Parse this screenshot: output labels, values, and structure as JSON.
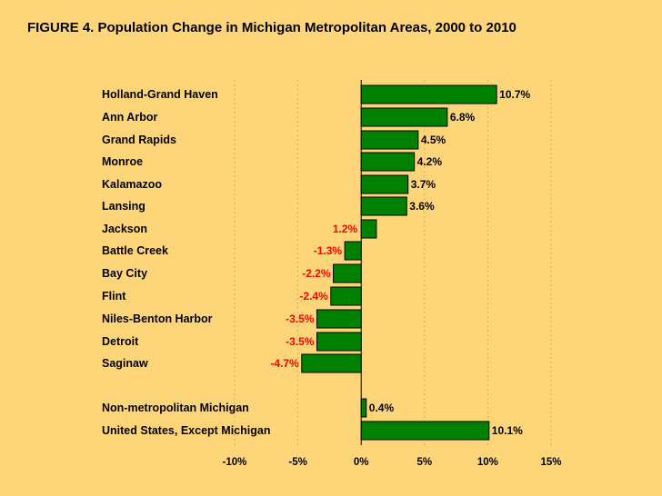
{
  "chart_data": {
    "type": "bar",
    "orientation": "horizontal",
    "title": "FIGURE 4.  Population Change in Michigan Metropolitan Areas, 2000 to 2010",
    "xlabel": "",
    "ylabel": "",
    "xlim": [
      -10,
      15
    ],
    "x_ticks": [
      -10,
      -5,
      0,
      5,
      10,
      15
    ],
    "x_tick_labels": [
      "-10%",
      "-5%",
      "0%",
      "5%",
      "10%",
      "15%"
    ],
    "grid": "vertical dashed",
    "categories": [
      "Holland-Grand Haven",
      "Ann Arbor",
      "Grand Rapids",
      "Monroe",
      "Kalamazoo",
      "Lansing",
      "Jackson",
      "Battle Creek",
      "Bay City",
      "Flint",
      "Niles-Benton Harbor",
      "Detroit",
      "Saginaw",
      "Non-metropolitan Michigan",
      "United States, Except Michigan"
    ],
    "values": [
      10.7,
      6.8,
      4.5,
      4.2,
      3.7,
      3.6,
      1.2,
      -1.3,
      -2.2,
      -2.4,
      -3.5,
      -3.5,
      -4.7,
      0.4,
      10.1
    ],
    "data_labels": [
      "10.7%",
      "6.8%",
      "4.5%",
      "4.2%",
      "3.7%",
      "3.6%",
      "1.2%",
      "-1.3%",
      "-2.2%",
      "-2.4%",
      "-3.5%",
      "-3.5%",
      "-4.7%",
      "0.4%",
      "10.1%"
    ],
    "label_colors": [
      "#000000",
      "#000000",
      "#000000",
      "#000000",
      "#000000",
      "#000000",
      "#FF0000",
      "#FF0000",
      "#FF0000",
      "#FF0000",
      "#FF0000",
      "#FF0000",
      "#FF0000",
      "#000000",
      "#000000"
    ],
    "bar_color": "#008000",
    "background_color": "#FFD57A"
  }
}
